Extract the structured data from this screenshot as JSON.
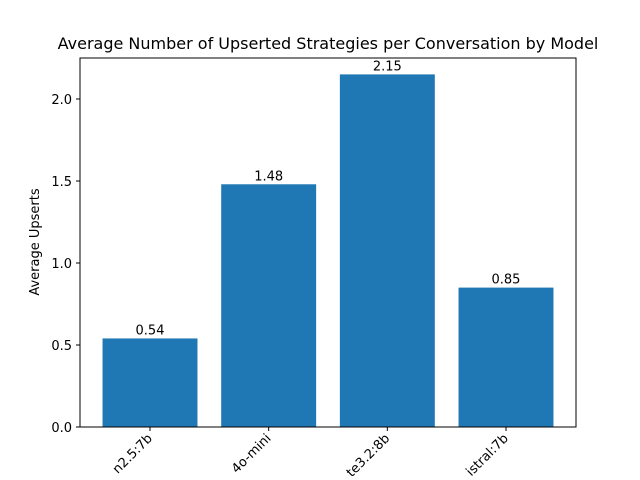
{
  "chart_data": {
    "type": "bar",
    "title": "Average Number of Upserted Strategies per Conversation by Model",
    "y_label": "Average Upserts",
    "categories": [
      "n2.5:7b",
      "4o-mini",
      "te3.2:8b",
      "istral:7b"
    ],
    "values": [
      0.54,
      1.48,
      2.15,
      0.85
    ],
    "color": "#1f77b4",
    "ylim": [
      0,
      2.25
    ],
    "yticks": [
      {
        "value": 0,
        "label": "0.0"
      },
      {
        "value": 0.5,
        "label": "0.5"
      },
      {
        "value": 1,
        "label": "1.0"
      },
      {
        "value": 1.5,
        "label": "1.5"
      },
      {
        "value": 2,
        "label": "2.0"
      }
    ]
  }
}
